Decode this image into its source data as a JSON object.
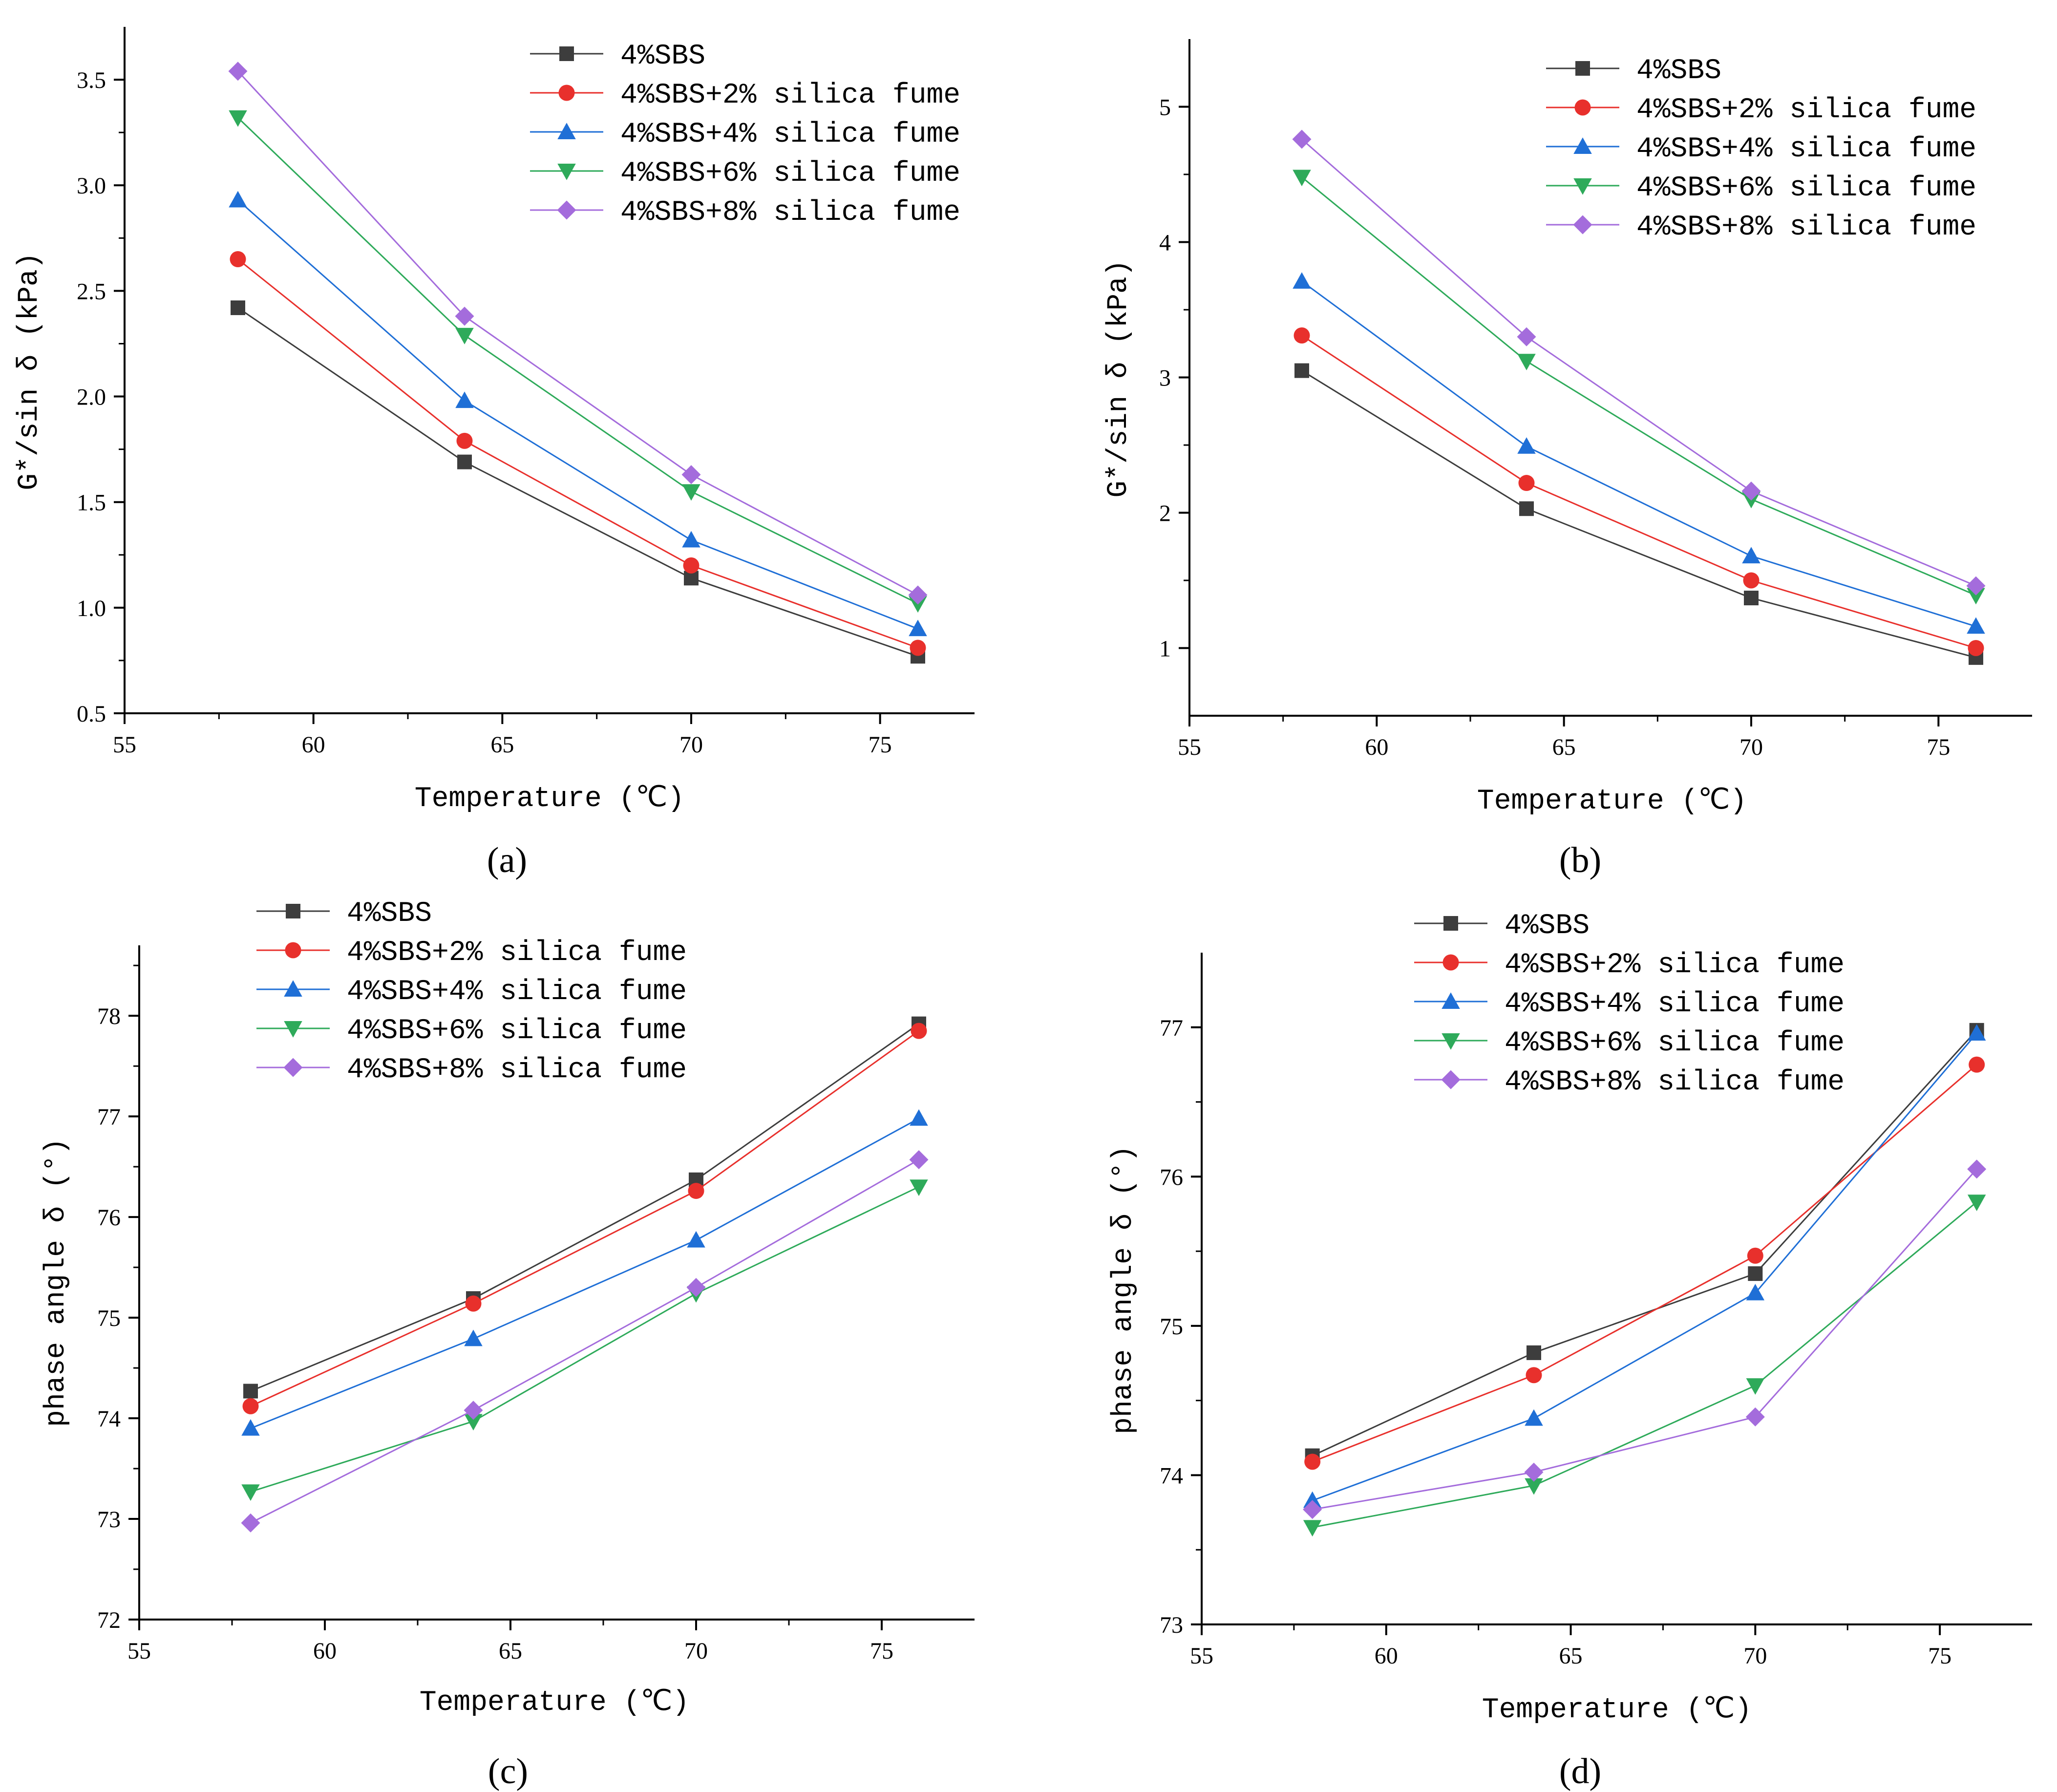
{
  "chart_data": [
    {
      "panel_label": "(a)",
      "type": "line",
      "xlabel": "Temperature (℃)",
      "ylabel": "G*/sin δ (kPa)",
      "xlim": [
        55,
        77.5
      ],
      "ylim": [
        0.5,
        3.75
      ],
      "xticks": [
        55,
        60,
        65,
        70,
        75
      ],
      "xtick_labels": [
        "55",
        "60",
        "65",
        "70",
        "75"
      ],
      "yticks": [
        0.5,
        1.0,
        1.5,
        2.0,
        2.5,
        3.0,
        3.5
      ],
      "ytick_labels": [
        "0.5",
        "1.0",
        "1.5",
        "2.0",
        "2.5",
        "3.0",
        "3.5"
      ],
      "x": [
        58,
        64,
        70,
        76
      ],
      "legend_position": "top-right",
      "series": [
        {
          "name": "4%SBS",
          "values": [
            2.42,
            1.69,
            1.14,
            0.77
          ],
          "color": "#3d3d3d",
          "marker": "square"
        },
        {
          "name": "4%SBS+2% silica fume",
          "values": [
            2.65,
            1.79,
            1.2,
            0.81
          ],
          "color": "#e8302c",
          "marker": "circle"
        },
        {
          "name": "4%SBS+4% silica fume",
          "values": [
            2.93,
            1.98,
            1.32,
            0.9
          ],
          "color": "#1f6fd6",
          "marker": "triangle-up"
        },
        {
          "name": "4%SBS+6% silica fume",
          "values": [
            3.32,
            2.29,
            1.55,
            1.02
          ],
          "color": "#2eaa5a",
          "marker": "triangle-down"
        },
        {
          "name": "4%SBS+8% silica fume",
          "values": [
            3.54,
            2.38,
            1.63,
            1.06
          ],
          "color": "#a46cdc",
          "marker": "diamond"
        }
      ]
    },
    {
      "panel_label": "(b)",
      "type": "line",
      "xlabel": "Temperature (℃)",
      "ylabel": "G*/sin δ (kPa)",
      "xlim": [
        55,
        77.5
      ],
      "ylim": [
        0.5,
        5.5
      ],
      "xticks": [
        55,
        60,
        65,
        70,
        75
      ],
      "xtick_labels": [
        "55",
        "60",
        "65",
        "70",
        "75"
      ],
      "yticks": [
        1,
        2,
        3,
        4,
        5
      ],
      "ytick_labels": [
        "1",
        "2",
        "3",
        "4",
        "5"
      ],
      "x": [
        58,
        64,
        70,
        76
      ],
      "legend_position": "top-right",
      "series": [
        {
          "name": "4%SBS",
          "values": [
            3.05,
            2.03,
            1.37,
            0.93
          ],
          "color": "#3d3d3d",
          "marker": "square"
        },
        {
          "name": "4%SBS+2% silica fume",
          "values": [
            3.31,
            2.22,
            1.5,
            1.0
          ],
          "color": "#e8302c",
          "marker": "circle"
        },
        {
          "name": "4%SBS+4% silica fume",
          "values": [
            3.71,
            2.49,
            1.68,
            1.16
          ],
          "color": "#1f6fd6",
          "marker": "triangle-up"
        },
        {
          "name": "4%SBS+6% silica fume",
          "values": [
            4.48,
            3.12,
            2.1,
            1.39
          ],
          "color": "#2eaa5a",
          "marker": "triangle-down"
        },
        {
          "name": "4%SBS+8% silica fume",
          "values": [
            4.76,
            3.3,
            2.16,
            1.46
          ],
          "color": "#a46cdc",
          "marker": "diamond"
        }
      ]
    },
    {
      "panel_label": "(c)",
      "type": "line",
      "xlabel": "Temperature (℃)",
      "ylabel": "phase angle δ (°)",
      "xlim": [
        55,
        77.5
      ],
      "ylim": [
        72,
        78.7
      ],
      "xticks": [
        55,
        60,
        65,
        70,
        75
      ],
      "xtick_labels": [
        "55",
        "60",
        "65",
        "70",
        "75"
      ],
      "yticks": [
        72,
        73,
        74,
        75,
        76,
        77,
        78
      ],
      "ytick_labels": [
        "72",
        "73",
        "74",
        "75",
        "76",
        "77",
        "78"
      ],
      "x": [
        58,
        64,
        70,
        76
      ],
      "legend_position": "top-left",
      "series": [
        {
          "name": "4%SBS",
          "values": [
            74.27,
            75.19,
            76.37,
            77.92
          ],
          "color": "#3d3d3d",
          "marker": "square"
        },
        {
          "name": "4%SBS+2% silica fume",
          "values": [
            74.12,
            75.14,
            76.26,
            77.85
          ],
          "color": "#e8302c",
          "marker": "circle"
        },
        {
          "name": "4%SBS+4% silica fume",
          "values": [
            73.9,
            74.79,
            75.77,
            76.98
          ],
          "color": "#1f6fd6",
          "marker": "triangle-up"
        },
        {
          "name": "4%SBS+6% silica fume",
          "values": [
            73.27,
            73.97,
            75.24,
            76.3
          ],
          "color": "#2eaa5a",
          "marker": "triangle-down"
        },
        {
          "name": "4%SBS+8% silica fume",
          "values": [
            72.96,
            74.08,
            75.3,
            76.57
          ],
          "color": "#a46cdc",
          "marker": "diamond"
        }
      ]
    },
    {
      "panel_label": "(d)",
      "type": "line",
      "xlabel": "Temperature (℃)",
      "ylabel": "phase angle δ (°)",
      "xlim": [
        55,
        77.5
      ],
      "ylim": [
        73,
        77.5
      ],
      "xticks": [
        55,
        60,
        65,
        70,
        75
      ],
      "xtick_labels": [
        "55",
        "60",
        "65",
        "70",
        "75"
      ],
      "yticks": [
        73,
        74,
        75,
        76,
        77
      ],
      "ytick_labels": [
        "73",
        "74",
        "75",
        "76",
        "77"
      ],
      "x": [
        58,
        64,
        70,
        76
      ],
      "legend_position": "top-left",
      "series": [
        {
          "name": "4%SBS",
          "values": [
            74.13,
            74.82,
            75.35,
            76.98
          ],
          "color": "#3d3d3d",
          "marker": "square"
        },
        {
          "name": "4%SBS+2% silica fume",
          "values": [
            74.09,
            74.67,
            75.47,
            76.75
          ],
          "color": "#e8302c",
          "marker": "circle"
        },
        {
          "name": "4%SBS+4% silica fume",
          "values": [
            73.83,
            74.38,
            75.22,
            76.96
          ],
          "color": "#1f6fd6",
          "marker": "triangle-up"
        },
        {
          "name": "4%SBS+6% silica fume",
          "values": [
            73.65,
            73.93,
            74.6,
            75.83
          ],
          "color": "#2eaa5a",
          "marker": "triangle-down"
        },
        {
          "name": "4%SBS+8% silica fume",
          "values": [
            73.77,
            74.02,
            74.39,
            76.05
          ],
          "color": "#a46cdc",
          "marker": "diamond"
        }
      ]
    }
  ]
}
